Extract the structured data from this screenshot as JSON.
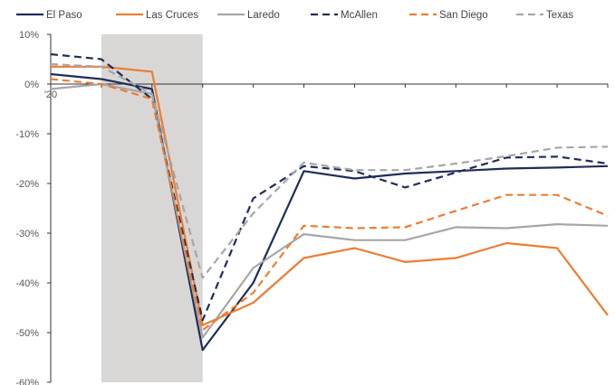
{
  "chart_data": {
    "type": "line",
    "title": "",
    "xlabel": "",
    "ylabel": "",
    "ylim": [
      -60,
      10
    ],
    "yticks": [
      10,
      0,
      -10,
      -20,
      -30,
      -40,
      -50,
      -60
    ],
    "ytick_labels": [
      "10%",
      "0%",
      "-10%",
      "-20%",
      "-30%",
      "-40%",
      "-50%",
      "-60%"
    ],
    "x": [
      0,
      1,
      2,
      3,
      4,
      5,
      6,
      7,
      8,
      9,
      10,
      11
    ],
    "x_tick_labels": [
      "'20"
    ],
    "xlim": [
      0,
      11
    ],
    "shaded_x_range": [
      1,
      3
    ],
    "shade_color": "#d9d7d6",
    "grid": false,
    "legend_position": "top",
    "series": [
      {
        "name": "El Paso",
        "color": "#1f2d5a",
        "dash": false,
        "values": [
          2,
          1,
          -1,
          -53.5,
          -40,
          -17.5,
          -19,
          -18,
          -17.5,
          -17,
          -16.8,
          -16.5
        ]
      },
      {
        "name": "Las Cruces",
        "color": "#ed7d31",
        "dash": false,
        "values": [
          3.5,
          3.5,
          2.5,
          -48.5,
          -44,
          -35,
          -33,
          -35.8,
          -35,
          -32,
          -33,
          -46.5
        ]
      },
      {
        "name": "Laredo",
        "color": "#a6a6a6",
        "dash": false,
        "values": [
          -1,
          0,
          -2,
          -51,
          -37,
          -30.2,
          -31.4,
          -31.4,
          -28.8,
          -29,
          -28.2,
          -28.5
        ]
      },
      {
        "name": "McAllen",
        "color": "#1f2d5a",
        "dash": true,
        "values": [
          6,
          5,
          -3,
          -47.5,
          -23,
          -16.5,
          -17.5,
          -20.8,
          -17.8,
          -14.8,
          -14.6,
          -16
        ]
      },
      {
        "name": "San Diego",
        "color": "#ed7d31",
        "dash": true,
        "values": [
          1,
          0,
          -3,
          -49.5,
          -42,
          -28.5,
          -29,
          -28.8,
          -25.5,
          -22.3,
          -22.3,
          -26.5
        ]
      },
      {
        "name": "Texas",
        "color": "#a6a6a6",
        "dash": true,
        "values": [
          4,
          3.5,
          -2,
          -39,
          -26,
          -15.8,
          -17.3,
          -17.3,
          -16,
          -14.5,
          -12.8,
          -12.6
        ]
      }
    ]
  }
}
